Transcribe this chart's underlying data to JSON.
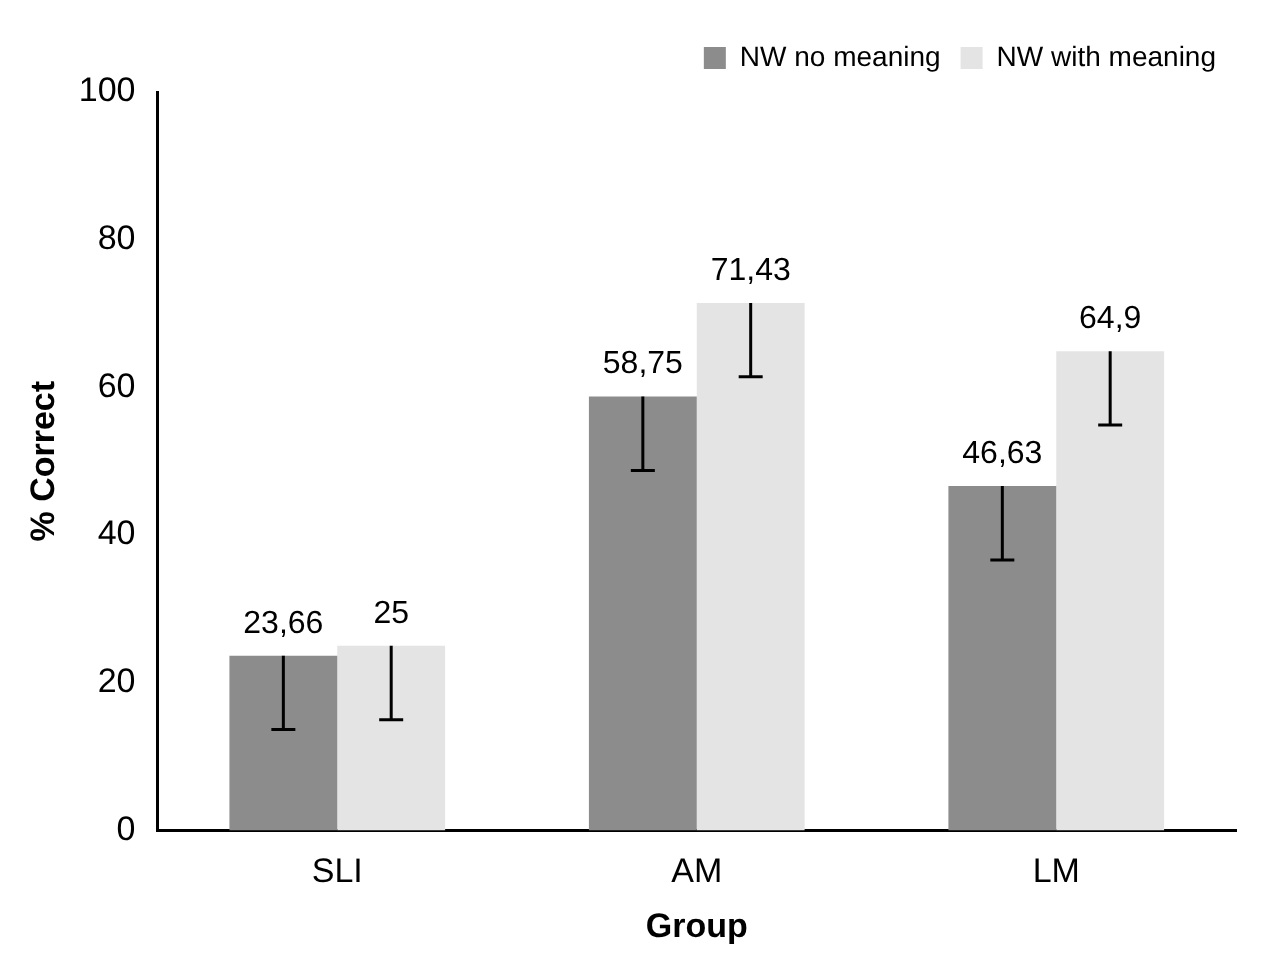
{
  "chart_data": {
    "type": "bar",
    "xlabel": "Group",
    "ylabel": "% Correct",
    "categories": [
      "SLI",
      "AM",
      "LM"
    ],
    "series": [
      {
        "name": "NW no meaning",
        "color": "#8c8c8c",
        "values": [
          23.66,
          58.75,
          46.63
        ],
        "errors": [
          [
            13.66,
            23.66
          ],
          [
            48.75,
            58.75
          ],
          [
            36.63,
            46.63
          ]
        ],
        "value_labels": [
          "23,66",
          "58,75",
          "46,63"
        ]
      },
      {
        "name": "NW with meaning",
        "color": "#e4e4e4",
        "values": [
          25,
          71.43,
          64.9
        ],
        "errors": [
          [
            15,
            25
          ],
          [
            61.43,
            71.43
          ],
          [
            54.9,
            64.9
          ]
        ],
        "value_labels": [
          "25",
          "71,43",
          "64,9"
        ]
      }
    ],
    "ylim": [
      0,
      100
    ],
    "yticks": [
      0,
      20,
      40,
      60,
      80,
      100
    ],
    "grid": false,
    "legend": "top right"
  }
}
